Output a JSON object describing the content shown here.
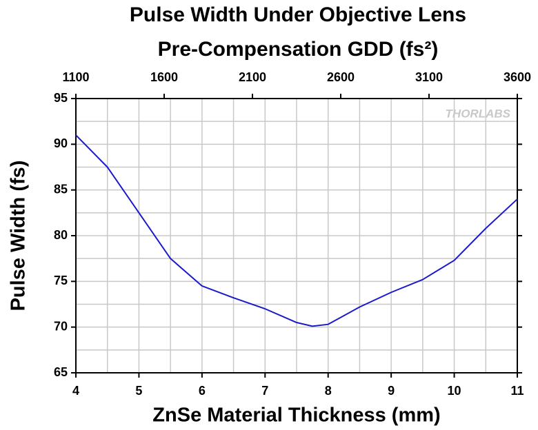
{
  "chart_data": {
    "type": "line",
    "title": "Pulse Width Under Objective Lens",
    "x2_label": "Pre-Compensation GDD (fs²)",
    "xlabel": "ZnSe Material Thickness (mm)",
    "ylabel": "Pulse Width (fs)",
    "watermark": "THORLABS",
    "x": [
      4,
      4.5,
      5,
      5.5,
      6,
      6.5,
      7,
      7.5,
      7.75,
      8,
      8.5,
      9,
      9.5,
      10,
      10.5,
      11
    ],
    "series": [
      {
        "name": "Pulse Width",
        "color": "#1a1acc",
        "values": [
          91,
          87.5,
          82.5,
          77.5,
          74.5,
          73.2,
          72,
          70.5,
          70.1,
          70.3,
          72.2,
          73.8,
          75.2,
          77.3,
          80.8,
          84
        ]
      }
    ],
    "xlim": [
      4,
      11
    ],
    "xticks": [
      4,
      5,
      6,
      7,
      8,
      9,
      10,
      11
    ],
    "x2lim": [
      1100,
      3600
    ],
    "x2ticks": [
      1100,
      1600,
      2100,
      2600,
      3100,
      3600
    ],
    "ylim": [
      65,
      95
    ],
    "yticks": [
      65,
      70,
      75,
      80,
      85,
      90,
      95
    ],
    "grid": true
  }
}
